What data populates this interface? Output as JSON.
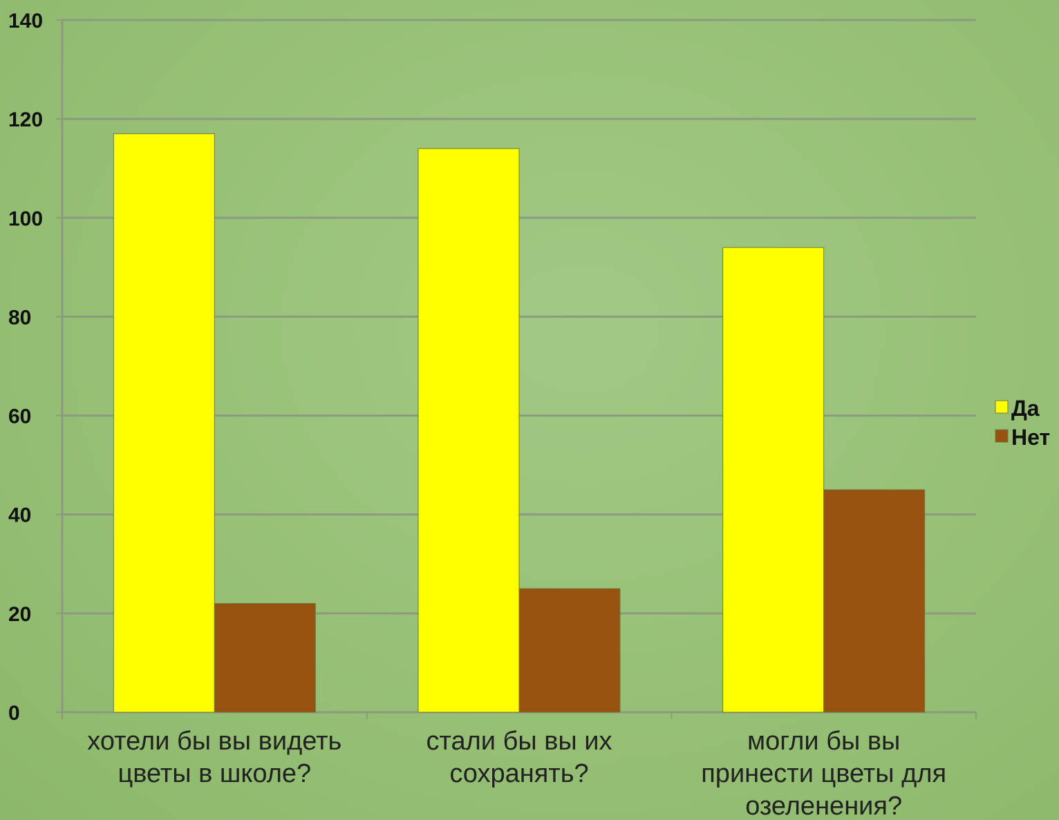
{
  "chart_data": {
    "type": "bar",
    "title": "",
    "xlabel": "",
    "ylabel": "",
    "ylim": [
      0,
      140
    ],
    "yticks": [
      0,
      20,
      40,
      60,
      80,
      100,
      120,
      140
    ],
    "grid": true,
    "legend_position": "right",
    "categories": [
      [
        "хотели бы вы видеть",
        "цветы в школе?"
      ],
      [
        "стали бы вы их",
        "сохранять?"
      ],
      [
        "могли бы вы",
        "принести цветы для",
        "озеленения?"
      ]
    ],
    "series": [
      {
        "name": "Да",
        "color": "#ffff00",
        "values": [
          117,
          114,
          94
        ]
      },
      {
        "name": "Нет",
        "color": "#96520e",
        "values": [
          22,
          25,
          45
        ]
      }
    ]
  }
}
